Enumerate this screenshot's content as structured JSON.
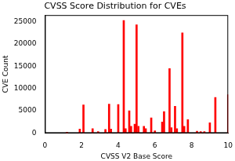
{
  "chart_data": {
    "type": "bar",
    "title": "CVSS Score Distribution for CVEs",
    "x_label": "CVSS V2 Base Score",
    "y_label": "CVE Count",
    "x": [
      1.2,
      1.9,
      2.1,
      2.6,
      2.9,
      3.3,
      3.5,
      3.6,
      4.0,
      4.3,
      4.4,
      4.6,
      4.7,
      4.9,
      5.0,
      5.1,
      5.4,
      5.5,
      5.8,
      6.0,
      6.4,
      6.5,
      6.8,
      6.9,
      7.1,
      7.2,
      7.5,
      7.6,
      7.8,
      8.3,
      8.5,
      8.7,
      9.0,
      9.3,
      10.0
    ],
    "values": [
      200,
      900,
      6300,
      1000,
      300,
      800,
      6500,
      900,
      6400,
      25300,
      1000,
      5000,
      1500,
      2000,
      24300,
      1500,
      1500,
      1000,
      3400,
      500,
      2500,
      4800,
      14500,
      1200,
      6000,
      1000,
      22500,
      1500,
      3000,
      400,
      300,
      300,
      2300,
      8000,
      8600
    ],
    "color": "#ff0000",
    "xlim": [
      0,
      10
    ],
    "xticks": [
      0,
      2,
      4,
      6,
      8,
      10
    ],
    "ylim": [
      0,
      26500
    ],
    "yticks": [
      0,
      5000,
      10000,
      15000,
      20000,
      25000
    ],
    "grid": false
  }
}
